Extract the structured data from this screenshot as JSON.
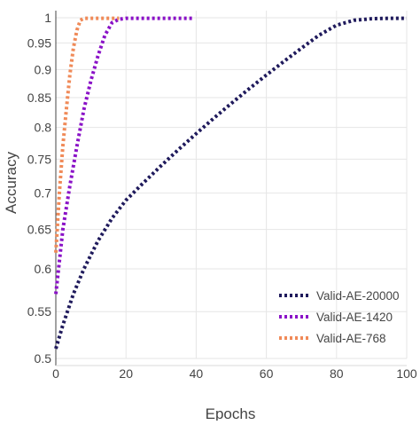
{
  "chart_data": {
    "type": "line",
    "title": "",
    "xlabel": "Epochs",
    "ylabel": "Accuracy",
    "xlim": [
      0,
      100
    ],
    "ylim": [
      0.5,
      1.0
    ],
    "y_scale": "log",
    "grid": true,
    "legend_position": "bottom-right",
    "x_ticks": [
      0,
      20,
      40,
      60,
      80,
      100
    ],
    "x_tick_labels": [
      "0",
      "20",
      "40",
      "60",
      "80",
      "100"
    ],
    "y_ticks": [
      0.5,
      0.55,
      0.6,
      0.65,
      0.7,
      0.75,
      0.8,
      0.85,
      0.9,
      0.95,
      1.0
    ],
    "y_tick_labels": [
      "0.5",
      "0.55",
      "0.6",
      "0.65",
      "0.7",
      "0.75",
      "0.8",
      "0.85",
      "0.9",
      "0.95",
      "1"
    ],
    "series": [
      {
        "name": "Valid-AE-20000",
        "color": "#1f1a5c",
        "style": "dotted",
        "x": [
          0,
          2,
          5,
          8,
          12,
          16,
          20,
          25,
          30,
          35,
          40,
          45,
          50,
          55,
          60,
          65,
          70,
          75,
          80,
          85,
          90,
          95,
          100
        ],
        "y": [
          0.51,
          0.535,
          0.57,
          0.6,
          0.635,
          0.665,
          0.69,
          0.715,
          0.74,
          0.765,
          0.79,
          0.815,
          0.84,
          0.865,
          0.89,
          0.915,
          0.94,
          0.965,
          0.985,
          0.995,
          0.998,
          0.999,
          0.999
        ]
      },
      {
        "name": "Valid-AE-1420",
        "color": "#8a12c7",
        "style": "dotted",
        "x": [
          0,
          2,
          4,
          6,
          8,
          10,
          12,
          14,
          16,
          18,
          20,
          25,
          30,
          35,
          39
        ],
        "y": [
          0.57,
          0.65,
          0.71,
          0.77,
          0.83,
          0.88,
          0.925,
          0.965,
          0.99,
          0.997,
          0.999,
          0.999,
          0.999,
          0.999,
          0.999
        ]
      },
      {
        "name": "Valid-AE-768",
        "color": "#f08a58",
        "style": "dotted",
        "x": [
          0,
          1,
          2,
          3,
          4,
          5,
          6,
          7,
          8,
          10,
          12,
          14,
          16,
          18
        ],
        "y": [
          0.62,
          0.7,
          0.77,
          0.83,
          0.89,
          0.94,
          0.975,
          0.995,
          0.999,
          0.999,
          0.999,
          0.999,
          0.999,
          0.999
        ]
      }
    ]
  }
}
